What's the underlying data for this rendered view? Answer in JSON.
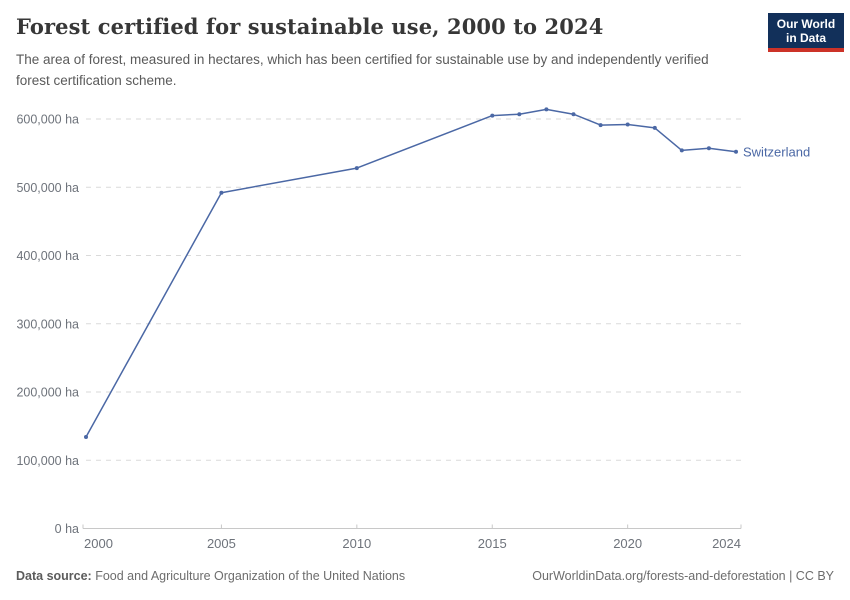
{
  "header": {
    "title": "Forest certified for sustainable use, 2000 to 2024",
    "subtitle": "The area of forest, measured in hectares, which has been certified for sustainable use by and independently verified forest certification scheme.",
    "logo": {
      "line1": "Our World",
      "line2": "in Data",
      "bg_color": "#12305a",
      "stripe_color": "#cc3228"
    }
  },
  "chart_data": {
    "type": "line",
    "title": "Forest certified for sustainable use, 2000 to 2024",
    "unit": "ha",
    "xlabel": "",
    "ylabel": "",
    "xlim": [
      2000,
      2024
    ],
    "ylim": [
      0,
      600000
    ],
    "grid": "horizontal-dashed",
    "legend_position": "end-of-line",
    "x": [
      2000,
      2005,
      2010,
      2015,
      2016,
      2017,
      2018,
      2019,
      2020,
      2021,
      2022,
      2023,
      2024
    ],
    "series": [
      {
        "name": "Switzerland",
        "color": "#4b68a5",
        "values": [
          134000,
          492000,
          528000,
          605000,
          607000,
          614000,
          607000,
          591000,
          592000,
          587000,
          554000,
          557000,
          552000
        ]
      }
    ],
    "y_ticks": [
      {
        "value": 0,
        "label": "0 ha"
      },
      {
        "value": 100000,
        "label": "100,000 ha"
      },
      {
        "value": 200000,
        "label": "200,000 ha"
      },
      {
        "value": 300000,
        "label": "300,000 ha"
      },
      {
        "value": 400000,
        "label": "400,000 ha"
      },
      {
        "value": 500000,
        "label": "500,000 ha"
      },
      {
        "value": 600000,
        "label": "600,000 ha"
      }
    ],
    "x_ticks": [
      {
        "value": 2000,
        "label": "2000"
      },
      {
        "value": 2005,
        "label": "2005"
      },
      {
        "value": 2010,
        "label": "2010"
      },
      {
        "value": 2015,
        "label": "2015"
      },
      {
        "value": 2020,
        "label": "2020"
      },
      {
        "value": 2024,
        "label": "2024"
      }
    ]
  },
  "colors": {
    "series": "#4b68a5",
    "gridline": "#dadada",
    "axis": "#c8c8c8",
    "tick_text": "#6e737b",
    "title_text": "#373737",
    "subtitle_text": "#5a5a5a",
    "footer_text": "#6d6d6d"
  },
  "footer": {
    "datasource_label": "Data source:",
    "datasource_value": "Food and Agriculture Organization of the United Nations",
    "link": "OurWorldinData.org/forests-and-deforestation | CC BY"
  }
}
